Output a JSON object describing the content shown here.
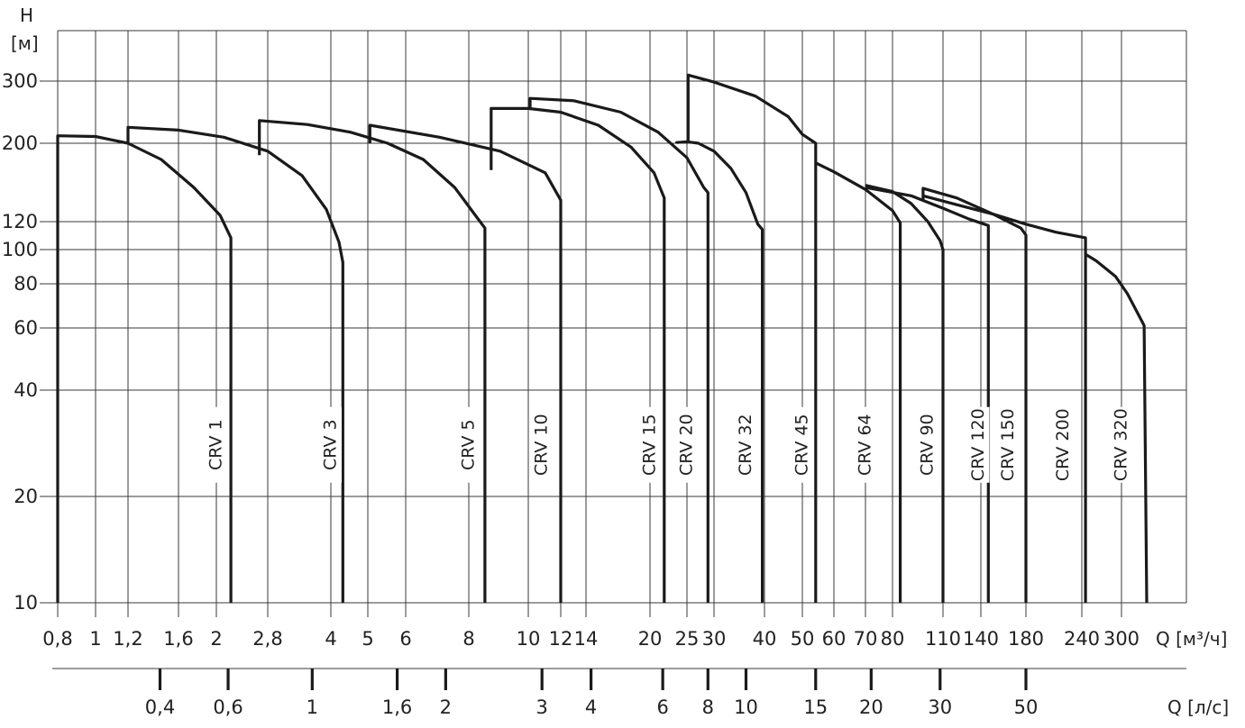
{
  "chart_data": {
    "type": "line",
    "title": "",
    "ylabel_lines": [
      "H",
      "[м]"
    ],
    "xlabel_top": "Q [м³/ч]",
    "xlabel_bottom": "Q [л/с]",
    "y_scale": "log",
    "x_scale": "log",
    "ylim": [
      10,
      400
    ],
    "xlim": [
      0.8,
      340
    ],
    "grid": true,
    "y_ticks": [
      {
        "v": 10,
        "label": "10"
      },
      {
        "v": 20,
        "label": "20"
      },
      {
        "v": 40,
        "label": "40"
      },
      {
        "v": 60,
        "label": "60"
      },
      {
        "v": 80,
        "label": "80"
      },
      {
        "v": 100,
        "label": "100"
      },
      {
        "v": 120,
        "label": "120"
      },
      {
        "v": 200,
        "label": "200"
      },
      {
        "v": 300,
        "label": "300"
      }
    ],
    "x_ticks_m3h": [
      {
        "v": 0.8,
        "label": "0,8"
      },
      {
        "v": 1,
        "label": "1"
      },
      {
        "v": 1.2,
        "label": "1,2"
      },
      {
        "v": 1.6,
        "label": "1,6"
      },
      {
        "v": 2,
        "label": "2"
      },
      {
        "v": 2.8,
        "label": "2,8"
      },
      {
        "v": 4,
        "label": "4"
      },
      {
        "v": 5,
        "label": "5"
      },
      {
        "v": 6,
        "label": "6"
      },
      {
        "v": 8,
        "label": "8"
      },
      {
        "v": 10,
        "label": "10"
      },
      {
        "v": 12,
        "label": "12"
      },
      {
        "v": 14,
        "label": "14"
      },
      {
        "v": 20,
        "label": "20"
      },
      {
        "v": 25,
        "label": "25"
      },
      {
        "v": 30,
        "label": "30"
      },
      {
        "v": 40,
        "label": "40"
      },
      {
        "v": 50,
        "label": "50"
      },
      {
        "v": 60,
        "label": "60"
      },
      {
        "v": 70,
        "label": "70"
      },
      {
        "v": 80,
        "label": "80"
      },
      {
        "v": 110,
        "label": "110"
      },
      {
        "v": 140,
        "label": "140"
      },
      {
        "v": 180,
        "label": "180"
      },
      {
        "v": 240,
        "label": "240"
      },
      {
        "v": 300,
        "label": "300"
      }
    ],
    "x_ticks_ls": [
      {
        "v": 0.4,
        "label": "0,4"
      },
      {
        "v": 0.6,
        "label": "0,6"
      },
      {
        "v": 1,
        "label": "1"
      },
      {
        "v": 1.6,
        "label": "1,6"
      },
      {
        "v": 2,
        "label": "2"
      },
      {
        "v": 3,
        "label": "3"
      },
      {
        "v": 4,
        "label": "4"
      },
      {
        "v": 6,
        "label": "6"
      },
      {
        "v": 8,
        "label": "8"
      },
      {
        "v": 10,
        "label": "10"
      },
      {
        "v": 15,
        "label": "15"
      },
      {
        "v": 20,
        "label": "20"
      },
      {
        "v": 30,
        "label": "30"
      },
      {
        "v": 50,
        "label": "50"
      }
    ],
    "series": [
      {
        "name": "CRV 1",
        "points": [
          [
            0.8,
            10
          ],
          [
            0.8,
            210
          ],
          [
            1.0,
            209
          ],
          [
            1.2,
            200
          ],
          [
            1.45,
            180
          ],
          [
            1.75,
            150
          ],
          [
            2.05,
            125
          ],
          [
            2.2,
            108
          ],
          [
            2.2,
            10
          ]
        ]
      },
      {
        "name": "CRV 3",
        "points": [
          [
            1.2,
            200
          ],
          [
            1.2,
            222
          ],
          [
            1.6,
            218
          ],
          [
            2.1,
            208
          ],
          [
            2.8,
            190
          ],
          [
            3.4,
            162
          ],
          [
            3.9,
            130
          ],
          [
            4.2,
            105
          ],
          [
            4.3,
            92
          ],
          [
            4.3,
            10
          ]
        ]
      },
      {
        "name": "CRV 5",
        "points": [
          [
            2.65,
            185
          ],
          [
            2.65,
            232
          ],
          [
            3.5,
            226
          ],
          [
            4.5,
            215
          ],
          [
            5.5,
            200
          ],
          [
            6.5,
            180
          ],
          [
            7.5,
            150
          ],
          [
            8.2,
            125
          ],
          [
            8.5,
            115
          ],
          [
            8.5,
            10
          ]
        ]
      },
      {
        "name": "CRV 10",
        "points": [
          [
            5.05,
            200
          ],
          [
            5.05,
            225
          ],
          [
            7,
            208
          ],
          [
            9,
            190
          ],
          [
            11,
            165
          ],
          [
            12.0,
            138
          ],
          [
            12.0,
            10
          ]
        ]
      },
      {
        "name": "CRV 15",
        "points": [
          [
            8.7,
            168
          ],
          [
            8.7,
            251
          ],
          [
            10,
            251
          ],
          [
            12,
            245
          ],
          [
            15,
            225
          ],
          [
            18,
            195
          ],
          [
            20.5,
            165
          ],
          [
            21.8,
            140
          ],
          [
            21.8,
            10
          ]
        ]
      },
      {
        "name": "CRV 20",
        "points": [
          [
            10.1,
            251
          ],
          [
            10.1,
            268
          ],
          [
            13,
            264
          ],
          [
            17,
            245
          ],
          [
            21,
            215
          ],
          [
            25,
            182
          ],
          [
            28,
            150
          ],
          [
            28.8,
            145
          ],
          [
            28.8,
            10
          ]
        ]
      },
      {
        "name": "CRV 32",
        "points": [
          [
            23.5,
            200
          ],
          [
            23.5,
            201
          ],
          [
            25,
            202
          ],
          [
            27,
            200
          ],
          [
            30,
            190
          ],
          [
            33,
            170
          ],
          [
            36,
            145
          ],
          [
            38.5,
            118
          ],
          [
            39.5,
            114
          ],
          [
            39.5,
            10
          ]
        ]
      },
      {
        "name": "CRV 45",
        "points": [
          [
            25.2,
            200
          ],
          [
            25.2,
            312
          ],
          [
            30,
            298
          ],
          [
            38,
            272
          ],
          [
            46,
            238
          ],
          [
            50,
            212
          ],
          [
            54,
            200
          ],
          [
            54,
            10
          ]
        ]
      },
      {
        "name": "CRV 64",
        "points": [
          [
            54,
            176
          ],
          [
            60,
            166
          ],
          [
            70,
            148
          ],
          [
            80,
            129
          ],
          [
            84,
            119
          ],
          [
            84,
            10
          ]
        ]
      },
      {
        "name": "CRV 90",
        "points": [
          [
            70,
            152
          ],
          [
            80,
            146
          ],
          [
            90,
            135
          ],
          [
            100,
            120
          ],
          [
            108,
            106
          ],
          [
            110,
            100
          ],
          [
            110,
            10
          ]
        ]
      },
      {
        "name": "CRV 120",
        "points": [
          [
            70,
            150
          ],
          [
            90,
            142
          ],
          [
            110,
            131
          ],
          [
            130,
            122
          ],
          [
            146,
            117
          ],
          [
            146,
            10
          ]
        ]
      },
      {
        "name": "CRV 150",
        "points": [
          [
            97,
            138
          ],
          [
            97,
            149
          ],
          [
            120,
            140
          ],
          [
            150,
            126
          ],
          [
            175,
            115
          ],
          [
            180,
            110
          ],
          [
            180,
            10
          ]
        ]
      },
      {
        "name": "CRV 200",
        "points": [
          [
            97,
            142
          ],
          [
            120,
            134
          ],
          [
            150,
            126
          ],
          [
            180,
            118
          ],
          [
            210,
            112
          ],
          [
            245,
            108
          ],
          [
            245,
            10
          ]
        ]
      },
      {
        "name": "CRV 320",
        "points": [
          [
            245,
            97
          ],
          [
            260,
            93
          ],
          [
            290,
            84
          ],
          [
            310,
            75
          ],
          [
            340,
            61
          ],
          [
            345,
            10
          ]
        ]
      }
    ],
    "series_label_pos_m3h": [
      {
        "name": "CRV 1",
        "x": 2.0,
        "y": 28
      },
      {
        "name": "CRV 3",
        "x": 4.0,
        "y": 28
      },
      {
        "name": "CRV 5",
        "x": 8.0,
        "y": 28
      },
      {
        "name": "CRV 10",
        "x": 10.8,
        "y": 28
      },
      {
        "name": "CRV 15",
        "x": 20,
        "y": 28
      },
      {
        "name": "CRV 20",
        "x": 25,
        "y": 28
      },
      {
        "name": "CRV 32",
        "x": 36,
        "y": 28
      },
      {
        "name": "CRV 45",
        "x": 50,
        "y": 28
      },
      {
        "name": "CRV 64",
        "x": 70,
        "y": 28
      },
      {
        "name": "CRV 90",
        "x": 100,
        "y": 28
      },
      {
        "name": "CRV 120",
        "x": 138,
        "y": 28
      },
      {
        "name": "CRV 150",
        "x": 163,
        "y": 28
      },
      {
        "name": "CRV 200",
        "x": 218,
        "y": 28
      },
      {
        "name": "CRV 320",
        "x": 300,
        "y": 28
      }
    ]
  }
}
